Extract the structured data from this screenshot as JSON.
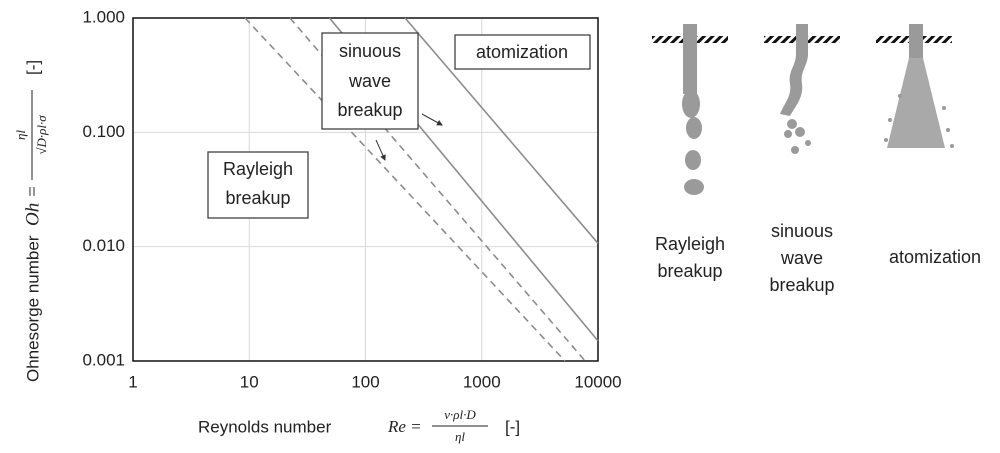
{
  "chart_data": {
    "type": "line",
    "xlog": true,
    "ylog": true,
    "grid": true,
    "xlim": [
      1,
      10000
    ],
    "ylim": [
      0.001,
      1
    ],
    "xticks": [
      1,
      10,
      100,
      1000,
      10000
    ],
    "yticks": [
      {
        "value": 0.001,
        "label": "0.001"
      },
      {
        "value": 0.01,
        "label": "0.010"
      },
      {
        "value": 0.1,
        "label": "0.100"
      },
      {
        "value": 1,
        "label": "1.000"
      }
    ],
    "x_label": {
      "text": "Reynolds number",
      "symbol": "Re =",
      "numerator": "v·ρl·D",
      "denominator": "ηl",
      "unit": "[-]"
    },
    "y_label": {
      "text": "Ohnesorge number",
      "symbol": "Oh =",
      "numerator": "ηl",
      "denominator": "√D·ρl·σ",
      "unit": "[-]"
    },
    "series": [
      {
        "x": [
          219,
          10000
        ],
        "values": [
          1,
          0.0107
        ],
        "color": "#8c8c8c",
        "dashed": false
      },
      {
        "x": [
          49,
          10000
        ],
        "values": [
          1,
          0.0015
        ],
        "color": "#8c8c8c",
        "dashed": false
      },
      {
        "x": [
          22.4,
          7750
        ],
        "values": [
          1,
          0.001
        ],
        "color": "#8c8c8c",
        "dashed": true
      },
      {
        "x": [
          9.2,
          5200
        ],
        "values": [
          1,
          0.001
        ],
        "color": "#8c8c8c",
        "dashed": true
      }
    ],
    "annotations": [
      {
        "lines": [
          "sinuous",
          "wave",
          "breakup"
        ]
      },
      {
        "lines": [
          "atomization"
        ]
      },
      {
        "lines": [
          "Rayleigh",
          "breakup"
        ]
      }
    ]
  },
  "illustrations": [
    {
      "lines": [
        "Rayleigh",
        "breakup"
      ]
    },
    {
      "lines": [
        "sinuous",
        "wave",
        "breakup"
      ]
    },
    {
      "lines": [
        "atomization"
      ]
    }
  ]
}
